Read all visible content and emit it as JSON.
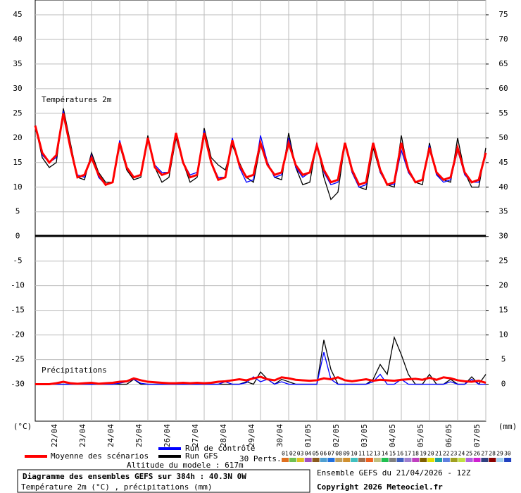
{
  "chart_data": {
    "type": "line",
    "temp_label": "Températures 2m",
    "precip_label": "Précipitations",
    "ylabel": "(°C)",
    "y2label": "(mm)",
    "altitude": "Altitude du modele : 617m",
    "title": "Diagramme des ensembles GEFS sur 384h : 40.3N 0W",
    "subtitle": "Température 2m (°C) , précipitations (mm)",
    "run": "Ensemble GEFS du 21/04/2026 - 12Z",
    "copyright": "Copyright 2026 Meteociel.fr",
    "grid": true,
    "categories": [
      null,
      null,
      null,
      null,
      "22/04",
      null,
      null,
      null,
      "23/04",
      null,
      null,
      null,
      "24/04",
      null,
      null,
      null,
      "25/04",
      null,
      null,
      null,
      "26/04",
      null,
      null,
      null,
      "27/04",
      null,
      null,
      null,
      "28/04",
      null,
      null,
      null,
      "29/04",
      null,
      null,
      null,
      "30/04",
      null,
      null,
      null,
      "01/05",
      null,
      null,
      null,
      "02/05",
      null,
      null,
      null,
      "03/05",
      null,
      null,
      null,
      "04/05",
      null,
      null,
      null,
      "05/05",
      null,
      null,
      null,
      "06/05",
      null,
      null,
      null,
      "07/05"
    ],
    "ylim": [
      -37.5,
      48
    ],
    "yticks": [
      -30,
      -25,
      -20,
      -15,
      -10,
      -5,
      0,
      5,
      10,
      15,
      20,
      25,
      30,
      35,
      40,
      45
    ],
    "y2lim": [
      -7.5,
      78
    ],
    "y2ticks": [
      0,
      5,
      10,
      15,
      20,
      25,
      30,
      35,
      40,
      45,
      50,
      55,
      60,
      65,
      70,
      75
    ],
    "series": [
      {
        "name": "Moyenne des scénarios",
        "color": "#ff0000",
        "values": [
          22.5,
          17,
          15,
          16.5,
          25,
          18,
          12,
          12.5,
          16,
          12.5,
          10.5,
          11,
          19,
          14,
          12,
          12.5,
          20,
          14,
          12.5,
          13,
          21,
          15,
          12,
          12.5,
          21,
          15,
          11.5,
          12,
          19.5,
          14.5,
          12,
          12.5,
          19,
          14.5,
          12.5,
          13,
          19,
          14.5,
          12.5,
          13,
          18.5,
          13.5,
          11,
          11.5,
          19,
          13.5,
          10.5,
          11,
          19,
          13.5,
          10.5,
          11,
          19,
          13.5,
          11,
          11.5,
          18,
          13,
          11.5,
          12,
          18,
          13,
          11,
          11.5,
          17
        ],
        "precip_values": [
          0,
          0,
          0,
          0.2,
          0.5,
          0.2,
          0.1,
          0.2,
          0.3,
          0.1,
          0.2,
          0.3,
          0.5,
          0.6,
          1.2,
          0.8,
          0.5,
          0.4,
          0.3,
          0.2,
          0.2,
          0.3,
          0.2,
          0.3,
          0.2,
          0.3,
          0.5,
          0.6,
          0.8,
          1,
          0.8,
          1.2,
          1.5,
          1,
          0.8,
          1.4,
          1.2,
          0.9,
          0.8,
          0.7,
          0.8,
          1.2,
          1,
          1.4,
          0.8,
          0.6,
          0.8,
          1,
          0.7,
          0.9,
          0.8,
          0.7,
          0.9,
          1,
          1.1,
          0.9,
          1.3,
          0.9,
          1.4,
          1.2,
          0.8,
          0.6,
          0.5,
          0.7,
          0.3
        ]
      },
      {
        "name": "Run de contrôle",
        "color": "#0000ff",
        "values": [
          22.5,
          16.5,
          15,
          16,
          25.5,
          18,
          12.5,
          12,
          16.5,
          12,
          10.5,
          11,
          19.5,
          14,
          12,
          12.5,
          20,
          14.5,
          13,
          13,
          20.5,
          15,
          12.5,
          13,
          21.5,
          15,
          12,
          12,
          20,
          14,
          11,
          11.5,
          20.5,
          15,
          12,
          12.5,
          20,
          14,
          12,
          13,
          19,
          13,
          10.5,
          11,
          19,
          13,
          10,
          10.5,
          19,
          13,
          10.5,
          10.5,
          17.5,
          13,
          11,
          11.5,
          18.5,
          12.5,
          11,
          11.5,
          17.5,
          12.5,
          11,
          11,
          17
        ],
        "precip_values": [
          0,
          0,
          0,
          0,
          0,
          0,
          0,
          0,
          0,
          0,
          0,
          0,
          0.2,
          0.5,
          1,
          0.2,
          0,
          0,
          0,
          0,
          0,
          0,
          0,
          0,
          0,
          0,
          0,
          0.5,
          0,
          0,
          0.3,
          1.5,
          0.5,
          1,
          0,
          0.5,
          0,
          0,
          0,
          0,
          0,
          6.5,
          1,
          0,
          0,
          0,
          0,
          0,
          0.5,
          2,
          0,
          0,
          1,
          0,
          0,
          0,
          0,
          0,
          0,
          0.5,
          0,
          0,
          1,
          0,
          0
        ]
      },
      {
        "name": "Run GFS",
        "color": "#000000",
        "values": [
          22.5,
          16,
          14,
          15,
          26,
          19,
          12,
          11.5,
          17,
          13,
          11,
          11,
          18.5,
          13.5,
          11.5,
          12,
          20.5,
          14,
          11,
          12,
          20,
          15,
          11,
          12,
          22,
          16,
          14.5,
          13.5,
          18.5,
          15,
          12,
          11,
          18.5,
          15,
          12,
          11.5,
          21,
          14,
          10.5,
          11,
          19,
          12,
          7.5,
          9,
          19,
          13,
          10,
          9.5,
          18,
          13,
          10.5,
          10,
          20.5,
          13,
          11,
          10.5,
          19,
          12.5,
          11.5,
          11,
          20,
          13,
          10,
          10,
          18
        ],
        "precip_values": [
          0,
          0,
          0,
          0,
          0,
          0,
          0,
          0,
          0,
          0,
          0,
          0,
          0,
          0,
          1,
          0,
          0,
          0,
          0,
          0,
          0,
          0,
          0,
          0,
          0,
          0,
          0,
          0,
          0,
          0,
          0.5,
          0,
          2.5,
          1,
          0,
          1,
          0.5,
          0,
          0,
          0,
          0,
          9,
          3,
          0,
          0,
          0,
          0,
          0,
          1,
          4,
          2,
          9.5,
          6,
          2,
          0,
          0,
          2,
          0,
          0,
          1,
          0,
          0,
          1.5,
          0,
          2
        ]
      }
    ],
    "perturbations": {
      "label": "30 Perts.",
      "members": [
        {
          "name": "01",
          "color": "#e07020"
        },
        {
          "name": "02",
          "color": "#70c050"
        },
        {
          "name": "03",
          "color": "#e0c020"
        },
        {
          "name": "04",
          "color": "#a050c0"
        },
        {
          "name": "05",
          "color": "#8c5a1e"
        },
        {
          "name": "06",
          "color": "#50a0d0"
        },
        {
          "name": "07",
          "color": "#2070e0"
        },
        {
          "name": "08",
          "color": "#c0a060"
        },
        {
          "name": "09",
          "color": "#d09030"
        },
        {
          "name": "10",
          "color": "#40c0c0"
        },
        {
          "name": "11",
          "color": "#a07050"
        },
        {
          "name": "12",
          "color": "#f06020"
        },
        {
          "name": "13",
          "color": "#c0c080"
        },
        {
          "name": "14",
          "color": "#20c050"
        },
        {
          "name": "15",
          "color": "#808080"
        },
        {
          "name": "16",
          "color": "#4060c0"
        },
        {
          "name": "17",
          "color": "#a080d0"
        },
        {
          "name": "18",
          "color": "#c040c0"
        },
        {
          "name": "19",
          "color": "#806000"
        },
        {
          "name": "20",
          "color": "#e0e000"
        },
        {
          "name": "21",
          "color": "#20a0a0"
        },
        {
          "name": "22",
          "color": "#6080e0"
        },
        {
          "name": "23",
          "color": "#a0a020"
        },
        {
          "name": "24",
          "color": "#c0e040"
        },
        {
          "name": "25",
          "color": "#b060e0"
        },
        {
          "name": "26",
          "color": "#d020d0"
        },
        {
          "name": "27",
          "color": "#304080"
        },
        {
          "name": "28",
          "color": "#8b0000"
        },
        {
          "name": "29",
          "color": "#a0d0f0"
        },
        {
          "name": "30",
          "color": "#2040c0"
        }
      ]
    }
  }
}
